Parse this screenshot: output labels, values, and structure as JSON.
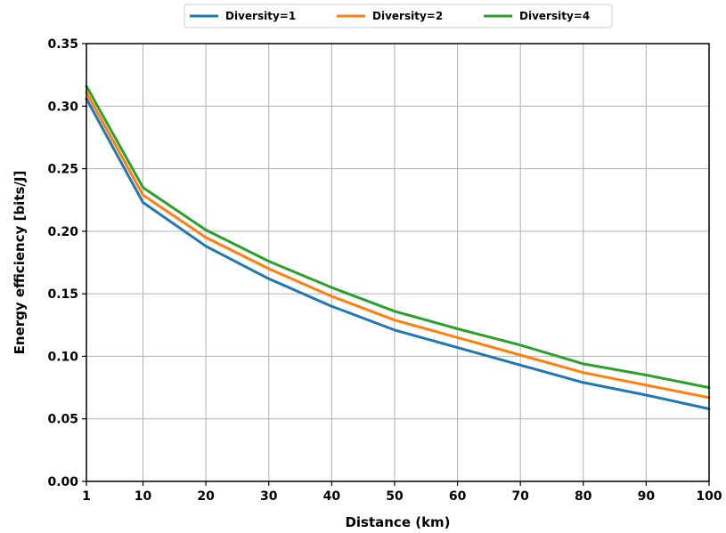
{
  "chart_data": {
    "type": "line",
    "title": "",
    "xlabel": "Distance (km)",
    "ylabel": "Energy efficiency [bits/J]",
    "x": [
      1,
      10,
      20,
      30,
      40,
      50,
      60,
      70,
      80,
      90,
      100
    ],
    "xticks": [
      "1",
      "10",
      "20",
      "30",
      "40",
      "50",
      "60",
      "70",
      "80",
      "90",
      "100"
    ],
    "yticks": [
      "0.00",
      "0.05",
      "0.10",
      "0.15",
      "0.20",
      "0.25",
      "0.30",
      "0.35"
    ],
    "xlim": [
      1,
      100
    ],
    "ylim": [
      0,
      0.35
    ],
    "grid": true,
    "legend_position": "top-center",
    "series": [
      {
        "name": "Diversity=1",
        "color": "#1f77b4",
        "values": [
          0.306,
          0.223,
          0.188,
          0.162,
          0.14,
          0.121,
          0.107,
          0.093,
          0.079,
          0.069,
          0.058
        ]
      },
      {
        "name": "Diversity=2",
        "color": "#ff7f0e",
        "values": [
          0.311,
          0.229,
          0.195,
          0.17,
          0.148,
          0.129,
          0.115,
          0.101,
          0.087,
          0.077,
          0.067
        ]
      },
      {
        "name": "Diversity=4",
        "color": "#2ca02c",
        "values": [
          0.316,
          0.235,
          0.201,
          0.176,
          0.155,
          0.136,
          0.122,
          0.109,
          0.094,
          0.085,
          0.075
        ]
      }
    ]
  }
}
